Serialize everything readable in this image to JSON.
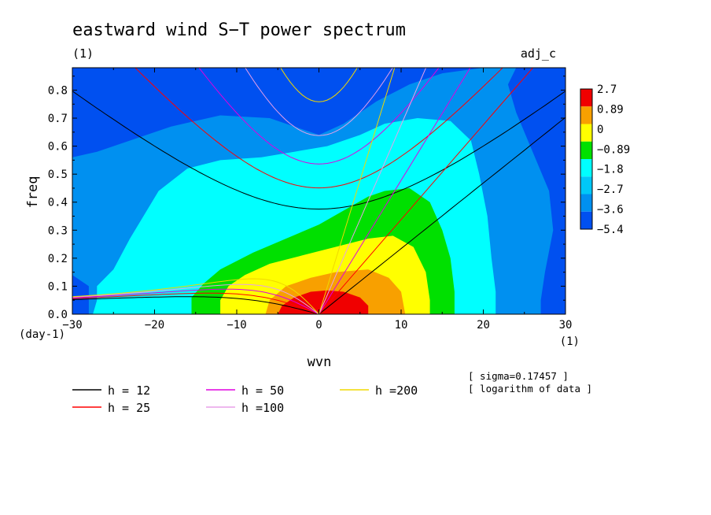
{
  "chart_data": {
    "type": "heatmap",
    "title": "eastward wind S−T power spectrum",
    "subtitle": "(1)",
    "run_label": "adj_c",
    "xlabel": "wvn",
    "ylabel": "freq",
    "x_unit": "(1)",
    "y_unit": "(day-1)",
    "xlim": [
      -30,
      30
    ],
    "ylim": [
      0,
      0.88
    ],
    "x_ticks": [
      {
        "value": -30,
        "label": "−30"
      },
      {
        "value": -20,
        "label": "−20"
      },
      {
        "value": -10,
        "label": "−10"
      },
      {
        "value": 0,
        "label": "0"
      },
      {
        "value": 10,
        "label": "10"
      },
      {
        "value": 20,
        "label": "20"
      },
      {
        "value": 30,
        "label": "30"
      }
    ],
    "y_ticks": [
      {
        "value": 0,
        "label": "0.0"
      },
      {
        "value": 0.1,
        "label": "0.1"
      },
      {
        "value": 0.2,
        "label": "0.2"
      },
      {
        "value": 0.3,
        "label": "0.3"
      },
      {
        "value": 0.4,
        "label": "0.4"
      },
      {
        "value": 0.5,
        "label": "0.5"
      },
      {
        "value": 0.6,
        "label": "0.6"
      },
      {
        "value": 0.7,
        "label": "0.7"
      },
      {
        "value": 0.8,
        "label": "0.8"
      }
    ],
    "colorbar": {
      "colors": [
        "#f00000",
        "#f8a000",
        "#ffff00",
        "#00e000",
        "#00ffff",
        "#00c8f8",
        "#0090f0",
        "#0050f0"
      ],
      "labels": [
        "2.7",
        "0.89",
        "0",
        "−0.89",
        "−1.8",
        "−2.7",
        "−3.6",
        "−5.4"
      ]
    },
    "contour_regions": [
      {
        "color": "#0050f0",
        "outline": [
          [
            -30,
            0.88
          ],
          [
            30,
            0.88
          ],
          [
            30,
            0
          ],
          [
            -30,
            0
          ]
        ]
      },
      {
        "color": "#0090f0",
        "outline": [
          [
            -30,
            0.56
          ],
          [
            -27,
            0.58
          ],
          [
            -23,
            0.62
          ],
          [
            -18,
            0.67
          ],
          [
            -12,
            0.71
          ],
          [
            -6,
            0.7
          ],
          [
            -2,
            0.66
          ],
          [
            0,
            0.64
          ],
          [
            3,
            0.68
          ],
          [
            7,
            0.76
          ],
          [
            11,
            0.82
          ],
          [
            15,
            0.86
          ],
          [
            20,
            0.88
          ],
          [
            24,
            0.88
          ],
          [
            23,
            0.82
          ],
          [
            24,
            0.72
          ],
          [
            26,
            0.58
          ],
          [
            28,
            0.44
          ],
          [
            28.5,
            0.3
          ],
          [
            27.5,
            0.15
          ],
          [
            27,
            0.05
          ],
          [
            27,
            0
          ],
          [
            -28,
            0
          ],
          [
            -28,
            0.1
          ],
          [
            -30,
            0.14
          ]
        ]
      },
      {
        "color": "#00ffff",
        "outline": [
          [
            -27.5,
            0
          ],
          [
            -27,
            0.05
          ],
          [
            -27,
            0.1
          ],
          [
            -25,
            0.16
          ],
          [
            -23,
            0.27
          ],
          [
            -19.5,
            0.44
          ],
          [
            -16,
            0.52
          ],
          [
            -12,
            0.55
          ],
          [
            -7,
            0.56
          ],
          [
            -3,
            0.58
          ],
          [
            1,
            0.6
          ],
          [
            5,
            0.64
          ],
          [
            8,
            0.68
          ],
          [
            12,
            0.7
          ],
          [
            16,
            0.69
          ],
          [
            18.5,
            0.62
          ],
          [
            19.5,
            0.5
          ],
          [
            20.5,
            0.35
          ],
          [
            21,
            0.2
          ],
          [
            21.5,
            0.08
          ],
          [
            21.5,
            0
          ]
        ]
      },
      {
        "color": "#00e000",
        "outline": [
          [
            -15.5,
            0
          ],
          [
            -15.5,
            0.06
          ],
          [
            -14,
            0.11
          ],
          [
            -12,
            0.16
          ],
          [
            -8,
            0.22
          ],
          [
            -4,
            0.27
          ],
          [
            0,
            0.32
          ],
          [
            3,
            0.37
          ],
          [
            6,
            0.42
          ],
          [
            8,
            0.44
          ],
          [
            11,
            0.45
          ],
          [
            13.5,
            0.4
          ],
          [
            15,
            0.3
          ],
          [
            16,
            0.2
          ],
          [
            16.5,
            0.08
          ],
          [
            16.5,
            0
          ]
        ]
      },
      {
        "color": "#ffff00",
        "outline": [
          [
            -12,
            0
          ],
          [
            -12,
            0.05
          ],
          [
            -11,
            0.1
          ],
          [
            -9,
            0.14
          ],
          [
            -6,
            0.18
          ],
          [
            -2,
            0.21
          ],
          [
            2,
            0.24
          ],
          [
            6,
            0.27
          ],
          [
            9,
            0.28
          ],
          [
            11.5,
            0.24
          ],
          [
            13,
            0.15
          ],
          [
            13.5,
            0.05
          ],
          [
            13.5,
            0
          ]
        ]
      },
      {
        "color": "#f8a000",
        "outline": [
          [
            -6.5,
            0
          ],
          [
            -6,
            0.05
          ],
          [
            -4,
            0.1
          ],
          [
            -1,
            0.13
          ],
          [
            2,
            0.15
          ],
          [
            6,
            0.16
          ],
          [
            8.5,
            0.13
          ],
          [
            10,
            0.08
          ],
          [
            10.5,
            0
          ]
        ]
      },
      {
        "color": "#f00000",
        "outline": [
          [
            -5,
            0
          ],
          [
            -4.5,
            0.03
          ],
          [
            -3,
            0.06
          ],
          [
            -1,
            0.08
          ],
          [
            1,
            0.085
          ],
          [
            3,
            0.08
          ],
          [
            5,
            0.06
          ],
          [
            6,
            0.03
          ],
          [
            6,
            0
          ]
        ]
      }
    ],
    "dispersion_lines": [
      {
        "name": "h = 12",
        "color": "#000000"
      },
      {
        "name": "h = 25",
        "color": "#ff0000"
      },
      {
        "name": "h = 50",
        "color": "#e000e0"
      },
      {
        "name": "h =100",
        "color": "#e8a0e8"
      },
      {
        "name": "h =200",
        "color": "#f0d800"
      }
    ],
    "legend_placement": "bottom",
    "annotations": [
      "[ sigma=0.17457 ]",
      "[ logarithm of data ]"
    ]
  }
}
